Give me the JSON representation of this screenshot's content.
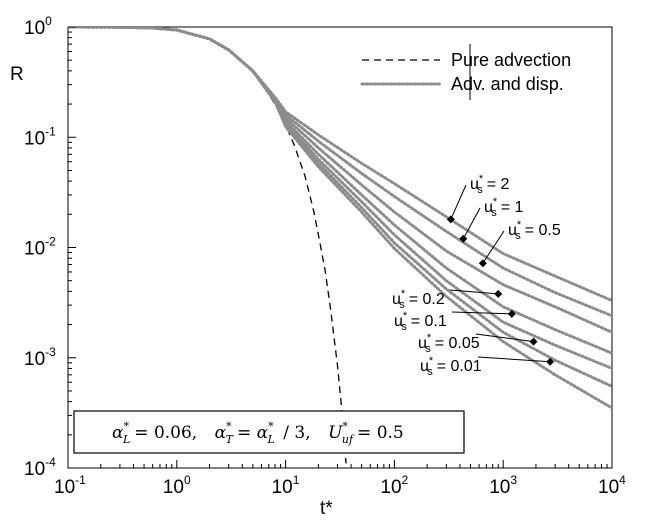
{
  "chart_data": {
    "type": "line",
    "title": "",
    "xlabel": "t*",
    "ylabel": "R",
    "xscale": "log",
    "yscale": "log",
    "xlim": [
      0.1,
      10000
    ],
    "ylim": [
      0.0001,
      1
    ],
    "x_ticks": [
      {
        "base": "10",
        "exp": "-1",
        "value": 0.1
      },
      {
        "base": "10",
        "exp": "0",
        "value": 1
      },
      {
        "base": "10",
        "exp": "1",
        "value": 10
      },
      {
        "base": "10",
        "exp": "2",
        "value": 100
      },
      {
        "base": "10",
        "exp": "3",
        "value": 1000
      },
      {
        "base": "10",
        "exp": "4",
        "value": 10000
      }
    ],
    "y_ticks": [
      {
        "base": "10",
        "exp": "0",
        "value": 1
      },
      {
        "base": "10",
        "exp": "-1",
        "value": 0.1
      },
      {
        "base": "10",
        "exp": "-2",
        "value": 0.01
      },
      {
        "base": "10",
        "exp": "-3",
        "value": 0.001
      },
      {
        "base": "10",
        "exp": "-4",
        "value": 0.0001
      }
    ],
    "grid": false,
    "legend": {
      "position": "top-right",
      "entries": [
        {
          "label": "Pure advection",
          "style": "dashed",
          "color": "#000000"
        },
        {
          "label": "Adv. and disp.",
          "style": "dotted",
          "color": "#8c8c8c"
        }
      ]
    },
    "series": [
      {
        "name": "Pure advection",
        "style": "dashed",
        "color": "#000000",
        "x": [
          0.1,
          0.3,
          0.6,
          1,
          2,
          3,
          4,
          5,
          6,
          8,
          10,
          12,
          15,
          18,
          20,
          23,
          26,
          30,
          33,
          36
        ],
        "y": [
          1,
          0.995,
          0.98,
          0.94,
          0.78,
          0.62,
          0.49,
          0.39,
          0.31,
          0.2,
          0.13,
          0.085,
          0.045,
          0.022,
          0.013,
          0.0063,
          0.0027,
          0.00085,
          0.00032,
          0.00011
        ]
      },
      {
        "name": "u_s* = 2",
        "style": "dotted",
        "color": "#8c8c8c",
        "x": [
          0.1,
          0.3,
          0.6,
          1,
          2,
          3,
          5,
          8,
          10,
          20,
          50,
          100,
          300,
          1000,
          3000,
          10000
        ],
        "y": [
          1,
          0.995,
          0.98,
          0.94,
          0.78,
          0.62,
          0.4,
          0.23,
          0.17,
          0.105,
          0.058,
          0.038,
          0.019,
          0.0088,
          0.0055,
          0.0033
        ]
      },
      {
        "name": "u_s* = 1",
        "style": "dotted",
        "color": "#8c8c8c",
        "x": [
          0.1,
          0.3,
          0.6,
          1,
          2,
          3,
          5,
          8,
          10,
          20,
          50,
          100,
          300,
          1000,
          3000,
          10000
        ],
        "y": [
          1,
          0.995,
          0.98,
          0.94,
          0.78,
          0.62,
          0.4,
          0.22,
          0.16,
          0.092,
          0.047,
          0.029,
          0.014,
          0.0065,
          0.0039,
          0.0024
        ]
      },
      {
        "name": "u_s* = 0.5",
        "style": "dotted",
        "color": "#8c8c8c",
        "x": [
          0.1,
          0.3,
          0.6,
          1,
          2,
          3,
          5,
          8,
          10,
          20,
          50,
          100,
          300,
          1000,
          3000,
          10000
        ],
        "y": [
          1,
          0.995,
          0.98,
          0.94,
          0.78,
          0.62,
          0.4,
          0.22,
          0.15,
          0.08,
          0.037,
          0.021,
          0.0093,
          0.0046,
          0.0029,
          0.0017
        ]
      },
      {
        "name": "u_s* = 0.2",
        "style": "dotted",
        "color": "#8c8c8c",
        "x": [
          0.1,
          0.3,
          0.6,
          1,
          2,
          3,
          5,
          8,
          10,
          20,
          50,
          100,
          300,
          1000,
          3000,
          10000
        ],
        "y": [
          1,
          0.995,
          0.98,
          0.94,
          0.78,
          0.62,
          0.4,
          0.21,
          0.14,
          0.07,
          0.03,
          0.016,
          0.0065,
          0.0029,
          0.0018,
          0.0011
        ]
      },
      {
        "name": "u_s* = 0.1",
        "style": "dotted",
        "color": "#8c8c8c",
        "x": [
          0.1,
          0.3,
          0.6,
          1,
          2,
          3,
          5,
          8,
          10,
          20,
          50,
          100,
          300,
          1000,
          3000,
          10000
        ],
        "y": [
          1,
          0.995,
          0.98,
          0.94,
          0.78,
          0.62,
          0.4,
          0.21,
          0.135,
          0.063,
          0.026,
          0.013,
          0.005,
          0.0021,
          0.0013,
          0.0008
        ]
      },
      {
        "name": "u_s* = 0.05",
        "style": "dotted",
        "color": "#8c8c8c",
        "x": [
          0.1,
          0.3,
          0.6,
          1,
          2,
          3,
          5,
          8,
          10,
          20,
          50,
          100,
          300,
          1000,
          3000,
          10000
        ],
        "y": [
          1,
          0.995,
          0.98,
          0.94,
          0.78,
          0.62,
          0.4,
          0.21,
          0.13,
          0.058,
          0.023,
          0.011,
          0.0042,
          0.0017,
          0.00095,
          0.00055
        ]
      },
      {
        "name": "u_s* = 0.01",
        "style": "dotted",
        "color": "#8c8c8c",
        "x": [
          0.1,
          0.3,
          0.6,
          1,
          2,
          3,
          5,
          8,
          10,
          20,
          50,
          100,
          300,
          1000,
          3000,
          10000
        ],
        "y": [
          1,
          0.995,
          0.98,
          0.94,
          0.78,
          0.62,
          0.4,
          0.21,
          0.125,
          0.054,
          0.021,
          0.0098,
          0.0036,
          0.0014,
          0.0007,
          0.00035
        ]
      }
    ],
    "annotations": [
      {
        "id": "ann-us-2",
        "text": "= 2",
        "marker_x": 330,
        "marker_y": 0.018
      },
      {
        "id": "ann-us-1",
        "text": "= 1",
        "marker_x": 430,
        "marker_y": 0.012
      },
      {
        "id": "ann-us-0.5",
        "text": "= 0.5",
        "marker_x": 650,
        "marker_y": 0.0072
      },
      {
        "id": "ann-us-0.2",
        "text": "= 0.2",
        "marker_x": 900,
        "marker_y": 0.0038
      },
      {
        "id": "ann-us-0.1",
        "text": "= 0.1",
        "marker_x": 1200,
        "marker_y": 0.0025
      },
      {
        "id": "ann-us-0.05",
        "text": "= 0.05",
        "marker_x": 1900,
        "marker_y": 0.0014
      },
      {
        "id": "ann-us-0.01",
        "text": "= 0.01",
        "marker_x": 2700,
        "marker_y": 0.00092
      }
    ],
    "annotation_symbol": {
      "base": "u",
      "sub": "s",
      "sup": "*"
    },
    "parameters_box": {
      "alpha_L": {
        "sym": "α",
        "sub": "L",
        "sup": "*",
        "value": "= 0.06,"
      },
      "alpha_T": {
        "sym": "α",
        "sub": "T",
        "sup": "*",
        "value": "= ",
        "ref_sym": "α",
        "ref_sub": "L",
        "ref_sup": "*",
        "ref_tail": " / 3,"
      },
      "U_uf": {
        "sym": "U",
        "sub": "uf",
        "sup": "*",
        "value": "= 0.5"
      }
    }
  }
}
